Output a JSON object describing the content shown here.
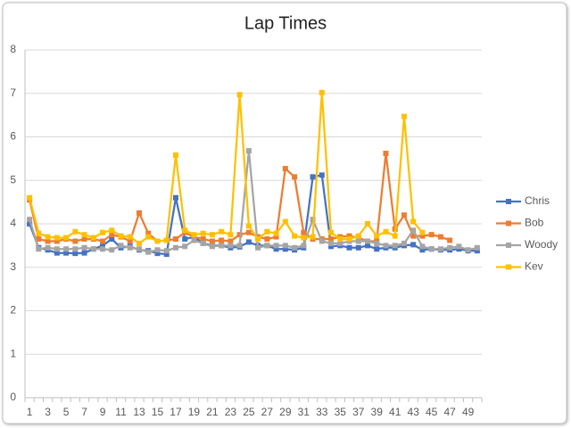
{
  "chart_data": {
    "type": "line",
    "title": "Lap Times",
    "categories": [
      1,
      null,
      3,
      null,
      5,
      null,
      7,
      null,
      9,
      null,
      11,
      null,
      13,
      null,
      15,
      null,
      17,
      null,
      19,
      null,
      21,
      null,
      23,
      null,
      25,
      null,
      27,
      null,
      29,
      null,
      31,
      null,
      33,
      null,
      35,
      null,
      37,
      null,
      39,
      null,
      41,
      null,
      43,
      null,
      45,
      null,
      47,
      null,
      49,
      null
    ],
    "series": [
      {
        "name": "Chris",
        "color": "#4472c4",
        "values": [
          4.0,
          3.45,
          3.4,
          3.33,
          3.33,
          3.32,
          3.33,
          3.42,
          3.5,
          3.65,
          3.45,
          3.48,
          3.4,
          3.38,
          3.32,
          3.3,
          4.6,
          3.65,
          3.7,
          3.55,
          3.5,
          3.5,
          3.45,
          3.47,
          3.58,
          3.5,
          3.5,
          3.42,
          3.42,
          3.4,
          3.45,
          5.08,
          5.12,
          3.48,
          3.5,
          3.45,
          3.45,
          3.5,
          3.42,
          3.45,
          3.45,
          3.5,
          3.52,
          3.4,
          3.42,
          3.4,
          3.4,
          3.42,
          3.38,
          3.38
        ]
      },
      {
        "name": "Bob",
        "color": "#ed7d31",
        "values": [
          4.55,
          3.65,
          3.6,
          3.6,
          3.65,
          3.6,
          3.65,
          3.65,
          3.6,
          3.75,
          3.7,
          3.6,
          4.25,
          3.78,
          3.6,
          3.62,
          3.65,
          3.8,
          3.7,
          3.65,
          3.6,
          3.62,
          3.6,
          3.75,
          3.8,
          3.7,
          3.65,
          3.7,
          5.27,
          5.08,
          3.8,
          3.65,
          3.65,
          3.65,
          3.7,
          3.72,
          3.68,
          3.6,
          3.6,
          5.62,
          3.88,
          4.2,
          3.72,
          3.72,
          3.75,
          3.7,
          3.62,
          null,
          null,
          null
        ]
      },
      {
        "name": "Woody",
        "color": "#a5a5a5",
        "values": [
          4.1,
          3.42,
          3.45,
          3.42,
          3.42,
          3.42,
          3.45,
          3.42,
          3.42,
          3.4,
          3.5,
          3.45,
          3.42,
          3.35,
          3.4,
          3.38,
          3.45,
          3.48,
          3.62,
          3.55,
          3.48,
          3.5,
          3.5,
          3.5,
          5.68,
          3.45,
          3.5,
          3.5,
          3.5,
          3.45,
          3.5,
          4.1,
          3.6,
          3.55,
          3.55,
          3.6,
          3.6,
          3.6,
          3.55,
          3.5,
          3.5,
          3.55,
          3.85,
          3.48,
          3.42,
          3.42,
          3.45,
          3.48,
          3.4,
          3.45
        ]
      },
      {
        "name": "Kev",
        "color": "#ffc000",
        "values": [
          4.6,
          3.78,
          3.7,
          3.68,
          3.68,
          3.82,
          3.75,
          3.68,
          3.8,
          3.85,
          3.72,
          3.7,
          3.55,
          3.7,
          3.6,
          3.62,
          5.58,
          3.85,
          3.75,
          3.78,
          3.75,
          3.82,
          3.75,
          6.97,
          3.95,
          3.65,
          3.82,
          3.78,
          4.05,
          3.72,
          3.68,
          3.7,
          7.02,
          3.8,
          3.65,
          3.65,
          3.72,
          4.0,
          3.72,
          3.82,
          3.72,
          6.47,
          4.05,
          3.8,
          null,
          null,
          null,
          null,
          null,
          null
        ]
      }
    ],
    "ylim": [
      0,
      8
    ],
    "yticks": [
      0,
      1,
      2,
      3,
      4,
      5,
      6,
      7,
      8
    ],
    "grid": true,
    "legend": "right"
  }
}
